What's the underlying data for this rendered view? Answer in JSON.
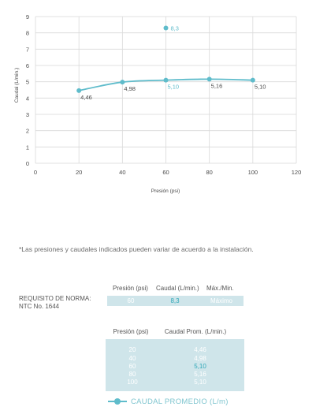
{
  "chart_data": {
    "type": "line",
    "xlabel": "Presión (psi)",
    "ylabel": "Caudal (L/min.)",
    "xlim": [
      0,
      120
    ],
    "ylim": [
      0,
      9
    ],
    "x_ticks": [
      "0",
      "20",
      "40",
      "60",
      "80",
      "100",
      "120"
    ],
    "y_ticks": [
      "0",
      "1",
      "2",
      "3",
      "4",
      "5",
      "6",
      "7",
      "8",
      "9"
    ],
    "grid": true,
    "series": [
      {
        "name": "CAUDAL PROMEDIO (L/m)",
        "x": [
          20,
          40,
          60,
          80,
          100
        ],
        "y": [
          4.46,
          4.98,
          5.1,
          5.16,
          5.1
        ],
        "labels": [
          "4,46",
          "4,98",
          "5,10",
          "5,16",
          "5,10"
        ],
        "color": "#5fbccb"
      }
    ],
    "highlight_point": {
      "x": 60,
      "y": 8.3,
      "label": "8,3",
      "color": "#5fbccb"
    }
  },
  "note": "*Las presiones y caudales indicados pueden variar de acuerdo a la instalación.",
  "requirement": {
    "label_line1": "REQUISITO DE NORMA:",
    "label_line2": "NTC No. 1644",
    "headers": [
      "Presión (psi)",
      "Caudal (L/min.)",
      "Máx./Min."
    ],
    "values": [
      "60",
      "8,3",
      "Máximo"
    ]
  },
  "table": {
    "headers": [
      "Presión (psi)",
      "Caudal Prom. (L/min.)"
    ],
    "rows": [
      [
        "20",
        "4,46"
      ],
      [
        "40",
        "4,98"
      ],
      [
        "60",
        "5,10"
      ],
      [
        "80",
        "5,16"
      ],
      [
        "100",
        "5,10"
      ]
    ]
  },
  "legend": {
    "label": "CAUDAL PROMEDIO (L/m)"
  },
  "colors": {
    "accent": "#5fbccb",
    "grid": "#d9d9d9",
    "table_bg": "#cfe5ea"
  }
}
